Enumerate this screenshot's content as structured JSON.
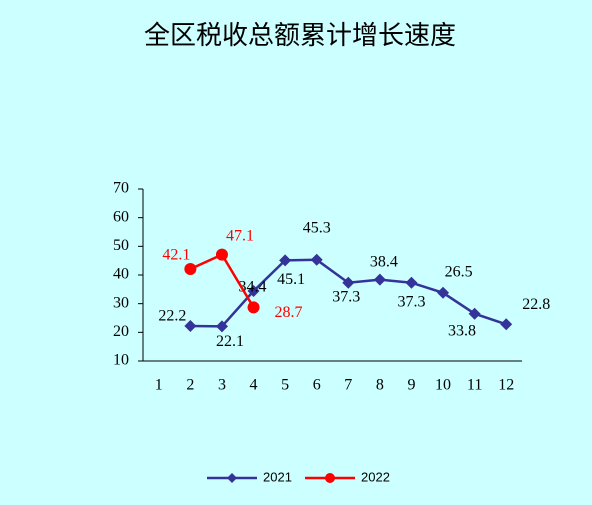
{
  "chart_data": {
    "type": "line",
    "title": "全区税收总额累计增长速度",
    "categories": [
      "1",
      "2",
      "3",
      "4",
      "5",
      "6",
      "7",
      "8",
      "9",
      "10",
      "11",
      "12"
    ],
    "series": [
      {
        "name": "2021",
        "color": "#333399",
        "values": [
          null,
          22.2,
          22.1,
          34.4,
          45.1,
          45.3,
          37.3,
          38.4,
          37.3,
          33.8,
          26.5,
          22.8
        ]
      },
      {
        "name": "2022",
        "color": "#ff0000",
        "values": [
          null,
          42.1,
          47.1,
          28.7,
          null,
          null,
          null,
          null,
          null,
          null,
          null,
          null
        ]
      }
    ],
    "ylim": [
      10,
      70
    ],
    "yticks": [
      10,
      20,
      30,
      40,
      50,
      60,
      70
    ],
    "grid": false
  }
}
